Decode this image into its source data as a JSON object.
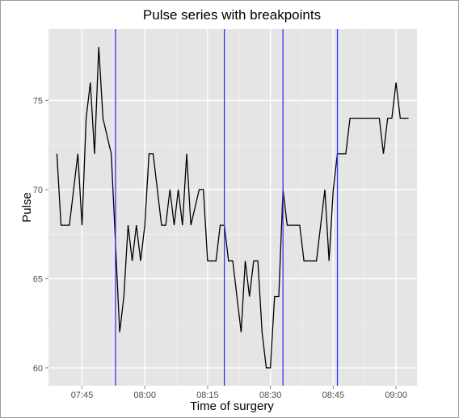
{
  "chart_data": {
    "type": "line",
    "title": "Pulse series with breakpoints",
    "xlabel": "Time of surgery",
    "ylabel": "Pulse",
    "x_unit": "time (HH:MM)",
    "xlim": [
      "07:37",
      "09:05"
    ],
    "ylim": [
      59,
      79
    ],
    "x_ticks": [
      "07:45",
      "08:00",
      "08:15",
      "08:30",
      "08:45",
      "09:00"
    ],
    "y_ticks": [
      60,
      65,
      70,
      75
    ],
    "grid": true,
    "background": "#e5e5e5",
    "grid_color": "#ffffff",
    "series": [
      {
        "color": "#000000",
        "points": [
          [
            "07:39",
            72
          ],
          [
            "07:40",
            68
          ],
          [
            "07:42",
            68
          ],
          [
            "07:44",
            72
          ],
          [
            "07:45",
            68
          ],
          [
            "07:46",
            74
          ],
          [
            "07:47",
            76
          ],
          [
            "07:48",
            72
          ],
          [
            "07:49",
            78
          ],
          [
            "07:50",
            74
          ],
          [
            "07:52",
            72
          ],
          [
            "07:53",
            67
          ],
          [
            "07:54",
            62
          ],
          [
            "07:55",
            64
          ],
          [
            "07:56",
            68
          ],
          [
            "07:57",
            66
          ],
          [
            "07:58",
            68
          ],
          [
            "07:59",
            66
          ],
          [
            "08:00",
            68
          ],
          [
            "08:01",
            72
          ],
          [
            "08:02",
            72
          ],
          [
            "08:04",
            68
          ],
          [
            "08:05",
            68
          ],
          [
            "08:06",
            70
          ],
          [
            "08:07",
            68
          ],
          [
            "08:08",
            70
          ],
          [
            "08:09",
            68
          ],
          [
            "08:10",
            72
          ],
          [
            "08:11",
            68
          ],
          [
            "08:13",
            70
          ],
          [
            "08:14",
            70
          ],
          [
            "08:15",
            66
          ],
          [
            "08:17",
            66
          ],
          [
            "08:18",
            68
          ],
          [
            "08:19",
            68
          ],
          [
            "08:20",
            66
          ],
          [
            "08:21",
            66
          ],
          [
            "08:23",
            62
          ],
          [
            "08:24",
            66
          ],
          [
            "08:25",
            64
          ],
          [
            "08:26",
            66
          ],
          [
            "08:27",
            66
          ],
          [
            "08:28",
            62
          ],
          [
            "08:29",
            60
          ],
          [
            "08:30",
            60
          ],
          [
            "08:31",
            64
          ],
          [
            "08:32",
            64
          ],
          [
            "08:33",
            70
          ],
          [
            "08:34",
            68
          ],
          [
            "08:37",
            68
          ],
          [
            "08:38",
            66
          ],
          [
            "08:41",
            66
          ],
          [
            "08:43",
            70
          ],
          [
            "08:44",
            66
          ],
          [
            "08:45",
            70
          ],
          [
            "08:46",
            72
          ],
          [
            "08:48",
            72
          ],
          [
            "08:49",
            74
          ],
          [
            "08:56",
            74
          ],
          [
            "08:57",
            72
          ],
          [
            "08:58",
            74
          ],
          [
            "08:59",
            74
          ],
          [
            "09:00",
            76
          ],
          [
            "09:01",
            74
          ],
          [
            "09:03",
            74
          ]
        ]
      }
    ],
    "breakpoints": {
      "color": "#3333ff",
      "x": [
        "07:53",
        "08:19",
        "08:33",
        "08:46"
      ]
    }
  }
}
